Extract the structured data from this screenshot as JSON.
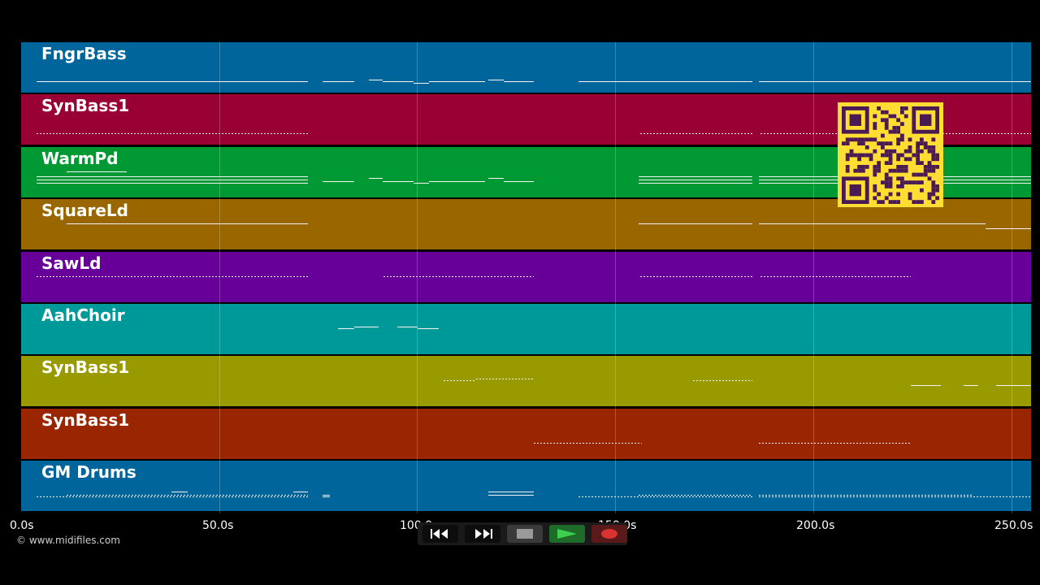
{
  "window": {
    "background": "#000000"
  },
  "tracks": [
    {
      "name": "FngrBass",
      "color": "#00659b"
    },
    {
      "name": "SynBass1",
      "color": "#990033"
    },
    {
      "name": "WarmPd",
      "color": "#009933"
    },
    {
      "name": "SquareLd",
      "color": "#996600"
    },
    {
      "name": "SawLd",
      "color": "#660099"
    },
    {
      "name": "AahChoir",
      "color": "#009999"
    },
    {
      "name": "SynBass1",
      "color": "#999900"
    },
    {
      "name": "SynBass1",
      "color": "#992600"
    },
    {
      "name": "GM Drums",
      "color": "#00659b"
    }
  ],
  "time_axis": {
    "unit": "s",
    "range": [
      0,
      255
    ],
    "ticks": [
      {
        "value": 0,
        "label": "0.0s"
      },
      {
        "value": 50,
        "label": "50.0s"
      },
      {
        "value": 100,
        "label": "100.0s"
      },
      {
        "value": 150,
        "label": "150.0s"
      },
      {
        "value": 200,
        "label": "200.0s"
      },
      {
        "value": 250,
        "label": "250.0s"
      }
    ]
  },
  "credit": "© www.midifiles.com",
  "transport": {
    "buttons": [
      {
        "name": "rewind-button",
        "icon": "rewind-icon"
      },
      {
        "name": "fast-forward-button",
        "icon": "fast-forward-icon"
      },
      {
        "name": "stop-button",
        "icon": "stop-icon"
      },
      {
        "name": "play-button",
        "icon": "play-icon"
      },
      {
        "name": "record-button",
        "icon": "record-icon"
      }
    ]
  },
  "overlay": {
    "icon": "qr-code-icon",
    "color": "#ffdd33"
  }
}
